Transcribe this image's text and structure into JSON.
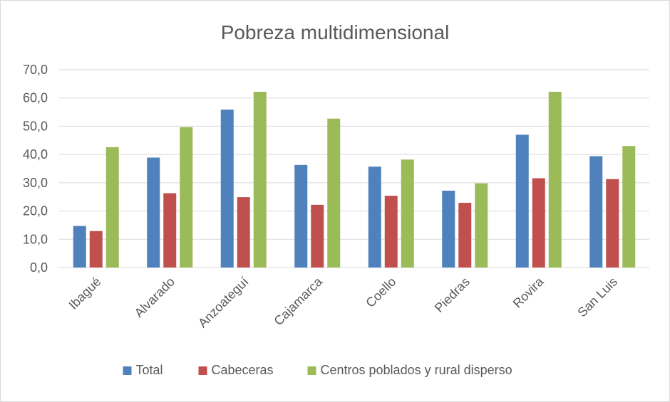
{
  "chart_data": {
    "type": "bar",
    "title": "Pobreza multidimensional",
    "xlabel": "",
    "ylabel": "",
    "categories": [
      "Ibagué",
      "Alvarado",
      "Anzoateguí",
      "Cajamarca",
      "Coello",
      "Piedras",
      "Rovira",
      "San Luis"
    ],
    "series": [
      {
        "name": "Total",
        "color": "#4f81bd",
        "values": [
          14.7,
          38.9,
          55.9,
          36.3,
          35.7,
          27.2,
          47.0,
          39.4
        ]
      },
      {
        "name": "Cabeceras",
        "color": "#c0504d",
        "values": [
          12.9,
          26.3,
          24.9,
          22.2,
          25.4,
          22.9,
          31.6,
          31.3
        ]
      },
      {
        "name": "Centros poblados y rural disperso",
        "color": "#9bbb59",
        "values": [
          42.6,
          49.7,
          62.2,
          52.7,
          38.2,
          29.8,
          62.2,
          43.0
        ]
      }
    ],
    "ylim": [
      0,
      70
    ],
    "yticks": [
      "0,0",
      "10,0",
      "20,0",
      "30,0",
      "40,0",
      "50,0",
      "60,0",
      "70,0"
    ],
    "grid": true,
    "legend_position": "bottom",
    "gridline_color": "#d9d9d9",
    "axis_line_color": "#d9d9d9"
  }
}
